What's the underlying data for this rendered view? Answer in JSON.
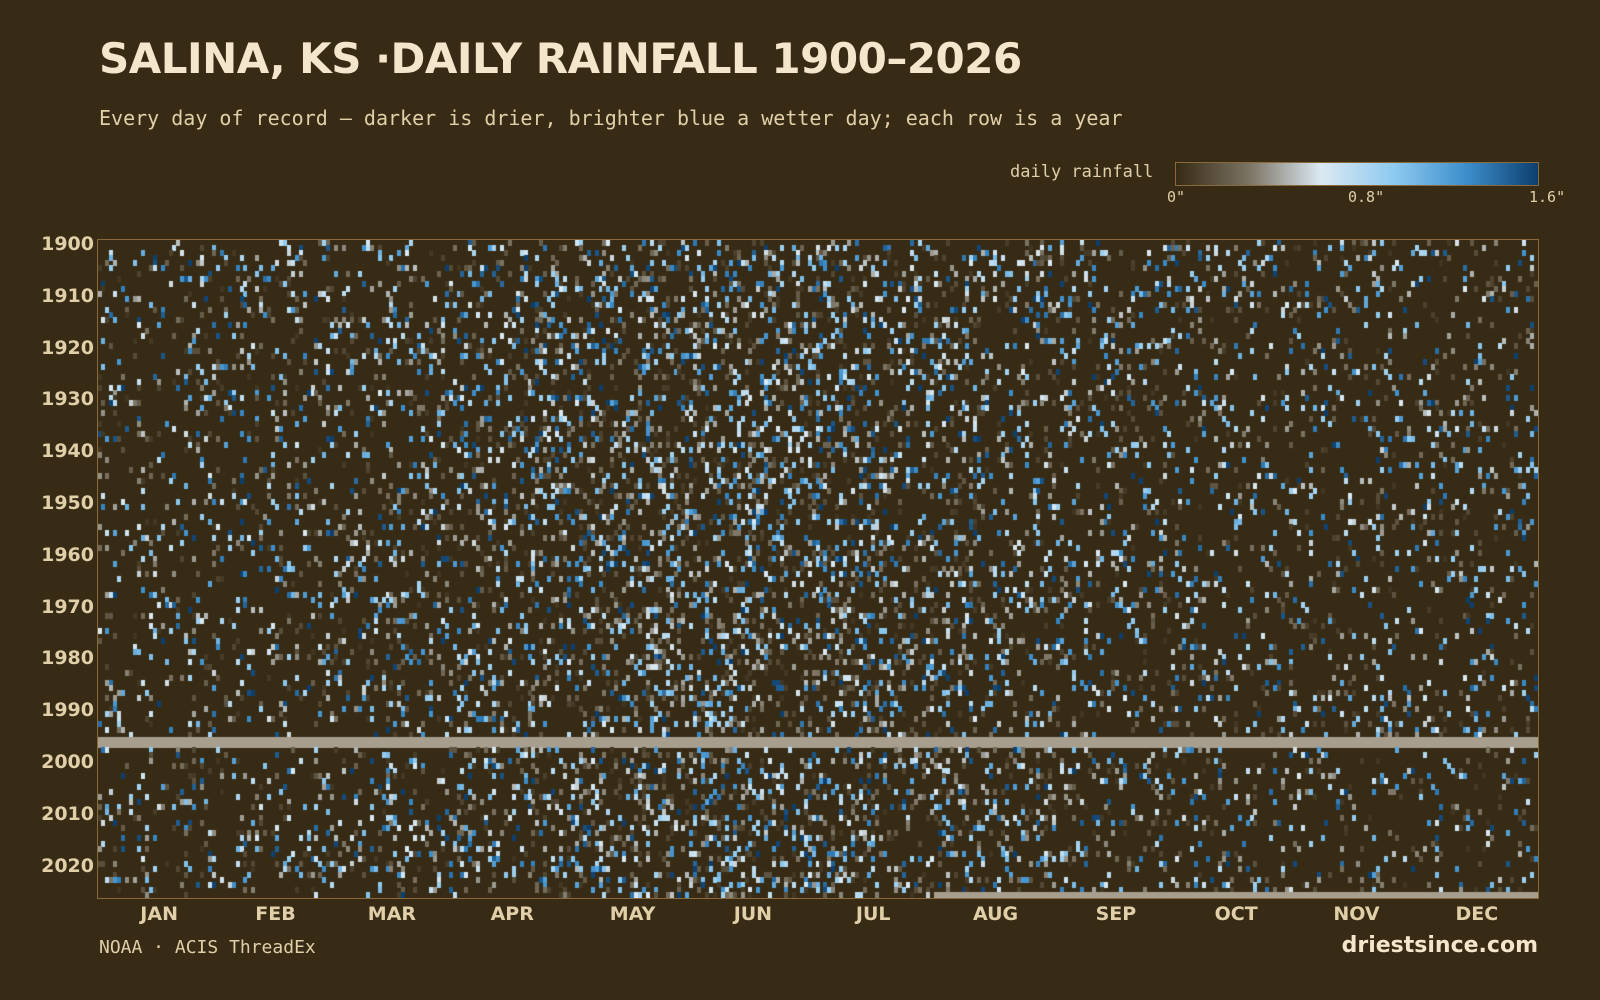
{
  "header": {
    "title": "SALINA, KS ·DAILY RAINFALL 1900–2026",
    "subtitle": "Every day of record — darker is drier, brighter blue a wetter day; each row is a year"
  },
  "legend": {
    "label": "daily rainfall",
    "ticks": [
      {
        "value": 0,
        "label": "0\""
      },
      {
        "value": 0.8,
        "label": "0.8\""
      },
      {
        "value": 1.6,
        "label": "1.6\""
      }
    ],
    "colors": [
      "#372b15",
      "#7a7262",
      "#dbe9f2",
      "#8fcaf0",
      "#3d8fcc",
      "#0d3f6e"
    ]
  },
  "chart_data": {
    "type": "heatmap",
    "title": "SALINA, KS ·DAILY RAINFALL 1900–2026",
    "x_unit": "day of year",
    "y_unit": "year",
    "year_range": [
      1900,
      2026
    ],
    "value_range": [
      0,
      1.6
    ],
    "year_ticks": [
      1900,
      1910,
      1920,
      1930,
      1940,
      1950,
      1960,
      1970,
      1980,
      1990,
      2000,
      2010,
      2020
    ],
    "month_ticks": [
      "JAN",
      "FEB",
      "MAR",
      "APR",
      "MAY",
      "JUN",
      "JUL",
      "AUG",
      "SEP",
      "OCT",
      "NOV",
      "DEC"
    ],
    "missing_data": [
      {
        "from": "1996-01-01",
        "to": "1997-12-31"
      },
      {
        "from": "2026-08-01",
        "to": "2026-12-31"
      }
    ],
    "missing_color": "#a89e8e",
    "background_color": "#372b15"
  },
  "footer": {
    "source": "NOAA · ACIS ThreadEx",
    "brand": "driestsince.com"
  }
}
